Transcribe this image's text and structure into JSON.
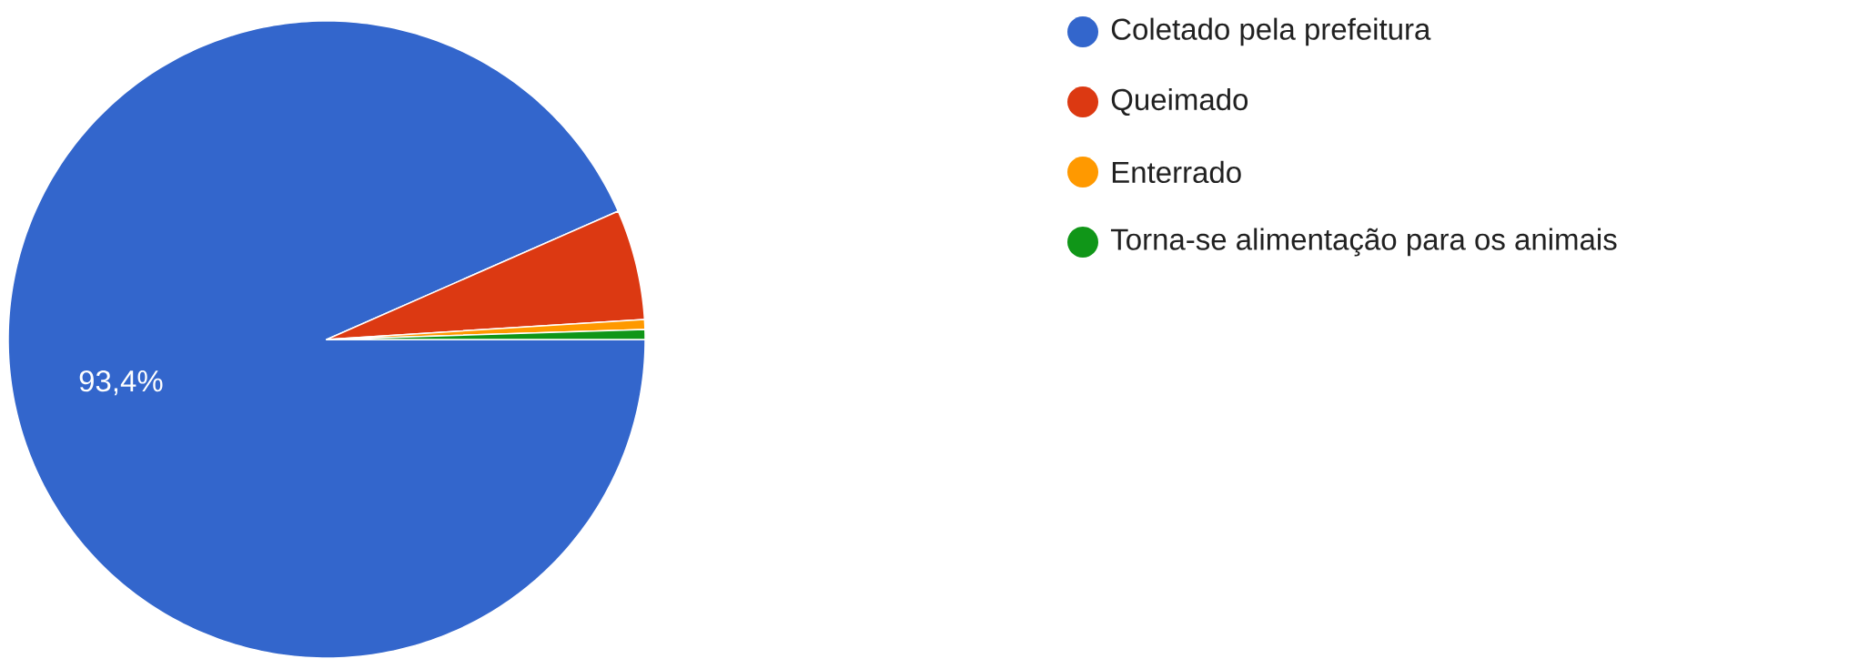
{
  "chart_data": {
    "type": "pie",
    "categories": [
      "Coletado pela prefeitura",
      "Queimado",
      "Enterrado",
      "Torna-se alimentação para os animais"
    ],
    "values": [
      93.4,
      5.6,
      0.5,
      0.5
    ],
    "colors": [
      "#3366cc",
      "#dc3912",
      "#ff9900",
      "#109618"
    ],
    "value_labels": [
      "93,4%",
      null,
      null,
      null
    ],
    "legend": "top right"
  }
}
